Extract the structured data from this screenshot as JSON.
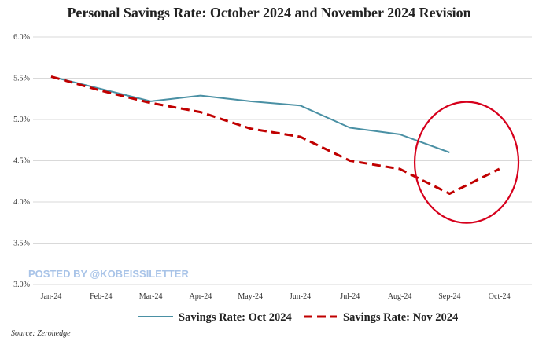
{
  "colors": {
    "series_oct": "#4a90a4",
    "series_nov": "#c00000",
    "highlight_circle": "#d6001c",
    "grid": "#d9d9d9",
    "watermark": "#a9c4e8"
  },
  "watermark": "POSTED BY @KOBEISSILETTER",
  "source": "Source: Zerohedge",
  "chart_data": {
    "type": "line",
    "title": "Personal Savings Rate: October 2024 and November 2024 Revision",
    "xlabel": "",
    "ylabel": "",
    "categories": [
      "Jan-24",
      "Feb-24",
      "Mar-24",
      "Apr-24",
      "May-24",
      "Jun-24",
      "Jul-24",
      "Aug-24",
      "Sep-24",
      "Oct-24"
    ],
    "ylim": [
      3.0,
      6.0
    ],
    "yticks": [
      "3.0%",
      "3.5%",
      "4.0%",
      "4.5%",
      "5.0%",
      "5.5%",
      "6.0%"
    ],
    "grid": "horizontal",
    "legend_position": "bottom",
    "series": [
      {
        "name": "Savings Rate: Oct 2024",
        "style": "solid",
        "values": [
          5.52,
          5.37,
          5.22,
          5.29,
          5.22,
          5.17,
          4.9,
          4.82,
          4.6,
          null
        ]
      },
      {
        "name": "Savings Rate: Nov 2024",
        "style": "dashed",
        "values": [
          5.52,
          5.35,
          5.2,
          5.09,
          4.89,
          4.79,
          4.5,
          4.4,
          4.1,
          4.4
        ]
      }
    ],
    "annotation": {
      "type": "circle",
      "around_categories": [
        "Sep-24",
        "Oct-24"
      ]
    }
  }
}
